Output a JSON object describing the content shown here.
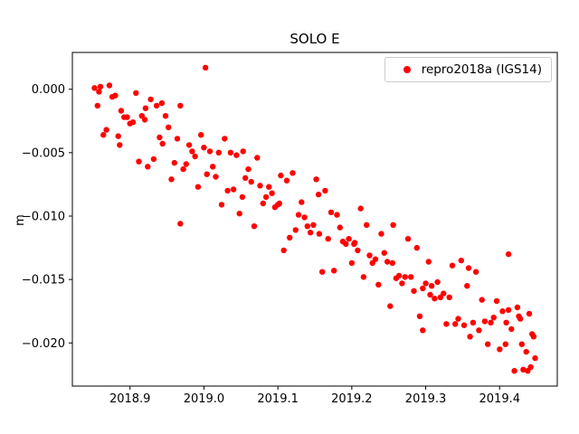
{
  "figure": {
    "title": "SOLO E",
    "ylabel": "m",
    "background": "#ffffff"
  },
  "legend": {
    "label": "repro2018a (IGS14)",
    "marker_color": "#ff0000",
    "position": "upper right"
  },
  "chart_data": {
    "type": "scatter",
    "title": "SOLO E",
    "xlabel": "",
    "ylabel": "m",
    "grid": false,
    "legend_position": "upper right",
    "frame_color": "#000000",
    "text_color": "#000000",
    "background": "#ffffff",
    "xlim": [
      2018.822,
      2019.478
    ],
    "ylim": [
      -0.0234,
      0.0029
    ],
    "xticks": {
      "values": [
        2018.9,
        2019.0,
        2019.1,
        2019.2,
        2019.3,
        2019.4
      ],
      "labels": [
        "2018.9",
        "2019.0",
        "2019.1",
        "2019.2",
        "2019.3",
        "2019.4"
      ]
    },
    "yticks": {
      "values": [
        0.0,
        -0.005,
        -0.01,
        -0.015,
        -0.02
      ],
      "labels": [
        "0.000",
        "−0.005",
        "−0.010",
        "−0.015",
        "−0.020"
      ]
    },
    "series": [
      {
        "name": "repro2018a (IGS14)",
        "color": "#ff0000",
        "marker": "circle",
        "marker_size": 3.2,
        "points": [
          [
            2018.856,
            -0.0013
          ],
          [
            2018.86,
            0.0002
          ],
          [
            2018.864,
            -0.0036
          ],
          [
            2018.868,
            -0.0032
          ],
          [
            2018.872,
            0.0003
          ],
          [
            2018.876,
            -0.0006
          ],
          [
            2018.88,
            -0.0005
          ],
          [
            2018.884,
            -0.0037
          ],
          [
            2018.888,
            -0.0017
          ],
          [
            2018.892,
            -0.0022
          ],
          [
            2018.896,
            -0.0022
          ],
          [
            2018.9,
            -0.0027
          ],
          [
            2018.904,
            -0.0026
          ],
          [
            2018.908,
            -0.0003
          ],
          [
            2018.912,
            -0.0057
          ],
          [
            2018.916,
            -0.0021
          ],
          [
            2018.92,
            -0.0024
          ],
          [
            2018.924,
            -0.0061
          ],
          [
            2018.928,
            -0.0008
          ],
          [
            2018.932,
            -0.0055
          ],
          [
            2018.936,
            -0.0013
          ],
          [
            2018.94,
            -0.0038
          ],
          [
            2018.944,
            -0.0043
          ],
          [
            2018.948,
            -0.0021
          ],
          [
            2018.952,
            -0.003
          ],
          [
            2018.956,
            -0.0071
          ],
          [
            2018.96,
            -0.0058
          ],
          [
            2018.964,
            -0.0039
          ],
          [
            2018.968,
            -0.0013
          ],
          [
            2018.972,
            -0.0063
          ],
          [
            2018.976,
            -0.0059
          ],
          [
            2018.98,
            -0.0044
          ],
          [
            2018.984,
            -0.0049
          ],
          [
            2018.988,
            -0.0053
          ],
          [
            2018.992,
            -0.0077
          ],
          [
            2018.996,
            -0.0036
          ],
          [
            2019.0,
            -0.0046
          ],
          [
            2019.004,
            -0.0067
          ],
          [
            2019.008,
            -0.0049
          ],
          [
            2019.012,
            -0.0061
          ],
          [
            2019.016,
            -0.0069
          ],
          [
            2019.02,
            -0.005
          ],
          [
            2019.024,
            -0.0091
          ],
          [
            2019.028,
            -0.0039
          ],
          [
            2019.032,
            -0.008
          ],
          [
            2019.036,
            -0.005
          ],
          [
            2019.04,
            -0.0079
          ],
          [
            2019.044,
            -0.0052
          ],
          [
            2019.048,
            -0.0098
          ],
          [
            2019.052,
            -0.0085
          ],
          [
            2019.056,
            -0.007
          ],
          [
            2019.06,
            -0.0063
          ],
          [
            2019.064,
            -0.0073
          ],
          [
            2019.068,
            -0.0108
          ],
          [
            2019.072,
            -0.0054
          ],
          [
            2019.076,
            -0.0076
          ],
          [
            2019.08,
            -0.009
          ],
          [
            2019.084,
            -0.0085
          ],
          [
            2019.088,
            -0.0077
          ],
          [
            2019.092,
            -0.0082
          ],
          [
            2019.096,
            -0.0093
          ],
          [
            2019.1,
            -0.0091
          ],
          [
            2019.104,
            -0.0068
          ],
          [
            2019.108,
            -0.0127
          ],
          [
            2019.112,
            -0.0072
          ],
          [
            2019.116,
            -0.0117
          ],
          [
            2019.12,
            -0.0066
          ],
          [
            2019.124,
            -0.0111
          ],
          [
            2019.128,
            -0.0099
          ],
          [
            2019.132,
            -0.0089
          ],
          [
            2019.136,
            -0.0101
          ],
          [
            2019.14,
            -0.0108
          ],
          [
            2019.144,
            -0.0113
          ],
          [
            2019.148,
            -0.0107
          ],
          [
            2019.152,
            -0.0071
          ],
          [
            2019.156,
            -0.0114
          ],
          [
            2019.16,
            -0.0144
          ],
          [
            2019.164,
            -0.008
          ],
          [
            2019.168,
            -0.0118
          ],
          [
            2019.172,
            -0.0097
          ],
          [
            2019.176,
            -0.0143
          ],
          [
            2019.18,
            -0.0099
          ],
          [
            2019.184,
            -0.0109
          ],
          [
            2019.188,
            -0.012
          ],
          [
            2019.192,
            -0.0122
          ],
          [
            2019.196,
            -0.0118
          ],
          [
            2019.2,
            -0.0137
          ],
          [
            2019.204,
            -0.0121
          ],
          [
            2019.208,
            -0.0127
          ],
          [
            2019.212,
            -0.0094
          ],
          [
            2019.216,
            -0.0148
          ],
          [
            2019.22,
            -0.0107
          ],
          [
            2019.224,
            -0.0131
          ],
          [
            2019.228,
            -0.0137
          ],
          [
            2019.232,
            -0.0134
          ],
          [
            2019.236,
            -0.0154
          ],
          [
            2019.24,
            -0.0114
          ],
          [
            2019.244,
            -0.0129
          ],
          [
            2019.248,
            -0.0136
          ],
          [
            2019.252,
            -0.0171
          ],
          [
            2019.256,
            -0.0107
          ],
          [
            2019.26,
            -0.0149
          ],
          [
            2019.264,
            -0.0147
          ],
          [
            2019.268,
            -0.0153
          ],
          [
            2019.272,
            -0.0148
          ],
          [
            2019.276,
            -0.0118
          ],
          [
            2019.28,
            -0.0148
          ],
          [
            2019.284,
            -0.0159
          ],
          [
            2019.288,
            -0.0125
          ],
          [
            2019.292,
            -0.0179
          ],
          [
            2019.296,
            -0.0157
          ],
          [
            2019.3,
            -0.0153
          ],
          [
            2019.304,
            -0.0136
          ],
          [
            2019.308,
            -0.0155
          ],
          [
            2019.312,
            -0.0165
          ],
          [
            2019.316,
            -0.0152
          ],
          [
            2019.32,
            -0.0164
          ],
          [
            2019.324,
            -0.0161
          ],
          [
            2019.328,
            -0.0185
          ],
          [
            2019.332,
            -0.0164
          ],
          [
            2019.336,
            -0.0139
          ],
          [
            2019.34,
            -0.0185
          ],
          [
            2019.344,
            -0.0181
          ],
          [
            2019.348,
            -0.0135
          ],
          [
            2019.352,
            -0.0186
          ],
          [
            2019.356,
            -0.0155
          ],
          [
            2019.36,
            -0.0195
          ],
          [
            2019.364,
            -0.0184
          ],
          [
            2019.368,
            -0.0144
          ],
          [
            2019.372,
            -0.019
          ],
          [
            2019.376,
            -0.0166
          ],
          [
            2019.38,
            -0.0183
          ],
          [
            2019.384,
            -0.0201
          ],
          [
            2019.388,
            -0.0184
          ],
          [
            2019.392,
            -0.018
          ],
          [
            2019.396,
            -0.0167
          ],
          [
            2019.4,
            -0.0205
          ],
          [
            2019.404,
            -0.0175
          ],
          [
            2019.408,
            -0.0201
          ],
          [
            2019.412,
            -0.0174
          ],
          [
            2019.416,
            -0.0189
          ],
          [
            2019.42,
            -0.0222
          ],
          [
            2019.424,
            -0.0172
          ],
          [
            2019.428,
            -0.0181
          ],
          [
            2019.432,
            -0.0221
          ],
          [
            2019.436,
            -0.0207
          ],
          [
            2019.44,
            -0.0177
          ],
          [
            2019.444,
            -0.0193
          ],
          [
            2019.448,
            -0.0212
          ],
          [
            2018.852,
            0.0001
          ],
          [
            2018.858,
            -0.0002
          ],
          [
            2018.886,
            -0.0044
          ],
          [
            2018.921,
            -0.0015
          ],
          [
            2018.943,
            -0.0011
          ],
          [
            2018.968,
            -0.0106
          ],
          [
            2019.002,
            0.0017
          ],
          [
            2019.053,
            -0.0049
          ],
          [
            2019.102,
            -0.009
          ],
          [
            2019.155,
            -0.0083
          ],
          [
            2019.203,
            -0.0122
          ],
          [
            2019.255,
            -0.0137
          ],
          [
            2019.296,
            -0.019
          ],
          [
            2019.306,
            -0.0162
          ],
          [
            2019.358,
            -0.0141
          ],
          [
            2019.409,
            -0.0184
          ],
          [
            2019.412,
            -0.013
          ],
          [
            2019.426,
            -0.0179
          ],
          [
            2019.43,
            -0.0201
          ],
          [
            2019.438,
            -0.0222
          ],
          [
            2019.442,
            -0.0219
          ],
          [
            2019.446,
            -0.0195
          ]
        ]
      }
    ]
  }
}
